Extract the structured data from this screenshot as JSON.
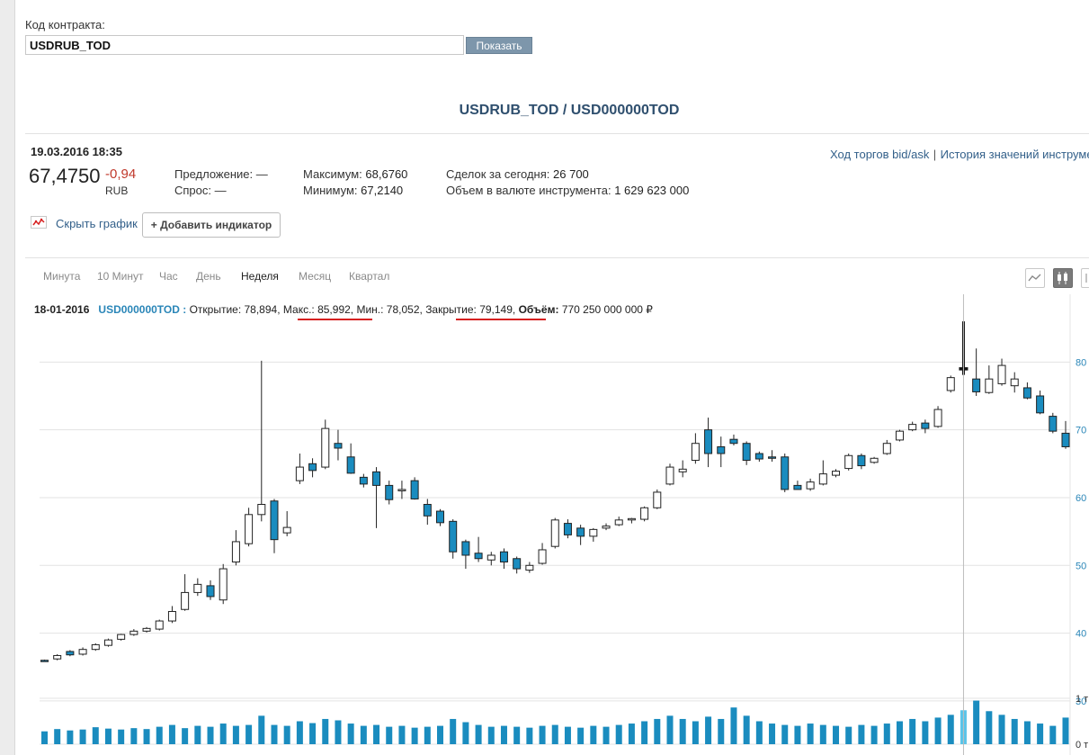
{
  "form": {
    "contract_label": "Код контракта:",
    "contract_value": "USDRUB_TOD",
    "show_button": "Показать"
  },
  "header": {
    "title": "USDRUB_TOD / USD000000TOD",
    "datetime": "19.03.2016 18:35",
    "price": "67,4750",
    "change": "-0,94",
    "currency": "RUB",
    "offer": "Предложение: —",
    "demand": "Спрос: —",
    "max_label": "Максимум:",
    "max_value": "68,6760",
    "min_label": "Минимум:",
    "min_value": "67,2140",
    "deals_label": "Сделок за сегодня:",
    "deals_value": "26 700",
    "volume_label": "Объем в валюте инструмента:",
    "volume_value": "1 629 623 000",
    "link_bidask": "Ход торгов bid/ask",
    "link_separator": "|",
    "link_history": "История значений инструме"
  },
  "controls": {
    "hide_chart": "Скрыть график",
    "add_indicator": "+ Добавить индикатор",
    "periods": [
      "Минута",
      "10 Минут",
      "Час",
      "День",
      "Неделя",
      "Месяц",
      "Квартал"
    ],
    "active_period": "Неделя"
  },
  "tooltip": {
    "date": "18-01-2016",
    "instrument": "USD000000TOD :",
    "open": "Открытие: 78,894,",
    "max": "Макс.: 85,992,",
    "min": "Мин.: 78,052,",
    "close": "Закрытие: 79,149,",
    "volume_label": "Объём:",
    "volume_value": "770 250 000 000 ₽"
  },
  "colors": {
    "up_fill": "#ffffff",
    "down_fill": "#1a8cbf",
    "volume": "#1a8cbf",
    "volume_highlight": "#5bc4e8",
    "axis_text": "#2a86b8",
    "underline": "#d62020"
  },
  "chart_data": {
    "type": "candlestick",
    "ylim": [
      28,
      90
    ],
    "yticks": [
      30,
      40,
      50,
      60,
      70,
      80
    ],
    "ytick_labels": [
      "30",
      "40",
      "50",
      "60",
      "70",
      "80"
    ],
    "volume_tick_labels": [
      "1 т",
      "0 т"
    ],
    "grid": true,
    "highlight_index": 72,
    "candles": [
      {
        "o": 36.0,
        "h": 36.1,
        "l": 35.8,
        "c": 35.9
      },
      {
        "o": 36.2,
        "h": 36.9,
        "l": 36.0,
        "c": 36.7
      },
      {
        "o": 37.3,
        "h": 37.5,
        "l": 36.6,
        "c": 36.8
      },
      {
        "o": 36.9,
        "h": 37.9,
        "l": 36.7,
        "c": 37.6
      },
      {
        "o": 37.6,
        "h": 38.5,
        "l": 37.4,
        "c": 38.3
      },
      {
        "o": 38.2,
        "h": 39.2,
        "l": 38.0,
        "c": 39.0
      },
      {
        "o": 39.1,
        "h": 39.9,
        "l": 38.9,
        "c": 39.8
      },
      {
        "o": 39.8,
        "h": 40.6,
        "l": 39.6,
        "c": 40.3
      },
      {
        "o": 40.3,
        "h": 40.9,
        "l": 40.1,
        "c": 40.7
      },
      {
        "o": 40.6,
        "h": 42.0,
        "l": 40.4,
        "c": 41.8
      },
      {
        "o": 41.8,
        "h": 44.0,
        "l": 41.5,
        "c": 43.2
      },
      {
        "o": 43.5,
        "h": 48.7,
        "l": 43.3,
        "c": 46.0
      },
      {
        "o": 46.0,
        "h": 48.1,
        "l": 45.5,
        "c": 47.2
      },
      {
        "o": 47.0,
        "h": 47.8,
        "l": 44.9,
        "c": 45.4
      },
      {
        "o": 44.9,
        "h": 50.2,
        "l": 44.3,
        "c": 49.5
      },
      {
        "o": 50.5,
        "h": 55.2,
        "l": 50.0,
        "c": 53.5
      },
      {
        "o": 53.2,
        "h": 58.5,
        "l": 52.8,
        "c": 57.5
      },
      {
        "o": 57.5,
        "h": 80.2,
        "l": 56.5,
        "c": 59.0
      },
      {
        "o": 59.5,
        "h": 59.8,
        "l": 51.8,
        "c": 53.8
      },
      {
        "o": 54.8,
        "h": 58.0,
        "l": 54.3,
        "c": 55.6
      },
      {
        "o": 62.5,
        "h": 66.5,
        "l": 62.0,
        "c": 64.5
      },
      {
        "o": 65.0,
        "h": 65.8,
        "l": 63.0,
        "c": 64.0
      },
      {
        "o": 64.5,
        "h": 71.5,
        "l": 64.2,
        "c": 70.2
      },
      {
        "o": 68.0,
        "h": 70.0,
        "l": 65.5,
        "c": 67.3
      },
      {
        "o": 66.0,
        "h": 68.0,
        "l": 63.5,
        "c": 63.6
      },
      {
        "o": 63.0,
        "h": 63.5,
        "l": 61.5,
        "c": 62.0
      },
      {
        "o": 63.8,
        "h": 64.5,
        "l": 55.5,
        "c": 61.8
      },
      {
        "o": 61.8,
        "h": 62.5,
        "l": 59.0,
        "c": 59.7
      },
      {
        "o": 61.0,
        "h": 62.5,
        "l": 59.8,
        "c": 61.2
      },
      {
        "o": 62.5,
        "h": 63.0,
        "l": 59.7,
        "c": 59.8
      },
      {
        "o": 59.0,
        "h": 59.8,
        "l": 56.0,
        "c": 57.3
      },
      {
        "o": 58.0,
        "h": 58.3,
        "l": 55.8,
        "c": 56.3
      },
      {
        "o": 56.5,
        "h": 56.8,
        "l": 51.0,
        "c": 52.0
      },
      {
        "o": 53.5,
        "h": 53.8,
        "l": 49.5,
        "c": 51.5
      },
      {
        "o": 51.8,
        "h": 54.2,
        "l": 50.5,
        "c": 51.0
      },
      {
        "o": 50.8,
        "h": 52.0,
        "l": 50.0,
        "c": 51.5
      },
      {
        "o": 52.0,
        "h": 52.5,
        "l": 49.5,
        "c": 50.5
      },
      {
        "o": 51.0,
        "h": 51.3,
        "l": 48.8,
        "c": 49.5
      },
      {
        "o": 49.3,
        "h": 50.5,
        "l": 48.9,
        "c": 50.0
      },
      {
        "o": 50.3,
        "h": 53.3,
        "l": 50.1,
        "c": 52.3
      },
      {
        "o": 52.8,
        "h": 57.0,
        "l": 52.5,
        "c": 56.7
      },
      {
        "o": 56.2,
        "h": 56.8,
        "l": 54.0,
        "c": 54.5
      },
      {
        "o": 55.5,
        "h": 56.0,
        "l": 53.0,
        "c": 54.3
      },
      {
        "o": 54.3,
        "h": 55.5,
        "l": 53.5,
        "c": 55.3
      },
      {
        "o": 55.5,
        "h": 56.2,
        "l": 55.2,
        "c": 55.8
      },
      {
        "o": 56.0,
        "h": 57.2,
        "l": 55.8,
        "c": 56.7
      },
      {
        "o": 56.7,
        "h": 57.0,
        "l": 56.2,
        "c": 56.9
      },
      {
        "o": 56.8,
        "h": 58.7,
        "l": 56.5,
        "c": 58.5
      },
      {
        "o": 58.5,
        "h": 61.2,
        "l": 58.3,
        "c": 60.8
      },
      {
        "o": 62.0,
        "h": 65.0,
        "l": 61.8,
        "c": 64.5
      },
      {
        "o": 63.8,
        "h": 65.5,
        "l": 63.0,
        "c": 64.2
      },
      {
        "o": 65.5,
        "h": 69.5,
        "l": 65.0,
        "c": 68.0
      },
      {
        "o": 70.0,
        "h": 71.8,
        "l": 64.5,
        "c": 66.5
      },
      {
        "o": 67.5,
        "h": 69.0,
        "l": 64.5,
        "c": 66.5
      },
      {
        "o": 68.6,
        "h": 69.3,
        "l": 67.7,
        "c": 68.0
      },
      {
        "o": 68.0,
        "h": 68.3,
        "l": 64.8,
        "c": 65.5
      },
      {
        "o": 66.5,
        "h": 66.8,
        "l": 65.3,
        "c": 65.7
      },
      {
        "o": 66.0,
        "h": 67.0,
        "l": 65.3,
        "c": 65.8
      },
      {
        "o": 66.0,
        "h": 66.5,
        "l": 60.8,
        "c": 61.2
      },
      {
        "o": 61.8,
        "h": 62.5,
        "l": 61.2,
        "c": 61.2
      },
      {
        "o": 61.3,
        "h": 62.8,
        "l": 61.0,
        "c": 62.3
      },
      {
        "o": 62.0,
        "h": 65.5,
        "l": 61.8,
        "c": 63.5
      },
      {
        "o": 63.3,
        "h": 64.2,
        "l": 63.0,
        "c": 63.9
      },
      {
        "o": 64.3,
        "h": 66.5,
        "l": 64.0,
        "c": 66.2
      },
      {
        "o": 66.2,
        "h": 66.5,
        "l": 64.2,
        "c": 64.7
      },
      {
        "o": 65.2,
        "h": 66.0,
        "l": 65.0,
        "c": 65.8
      },
      {
        "o": 66.5,
        "h": 68.5,
        "l": 66.3,
        "c": 68.0
      },
      {
        "o": 68.5,
        "h": 70.0,
        "l": 68.3,
        "c": 69.8
      },
      {
        "o": 70.0,
        "h": 71.2,
        "l": 69.8,
        "c": 70.8
      },
      {
        "o": 71.0,
        "h": 71.5,
        "l": 69.5,
        "c": 70.2
      },
      {
        "o": 70.5,
        "h": 73.5,
        "l": 70.3,
        "c": 73.0
      },
      {
        "o": 75.8,
        "h": 78.0,
        "l": 75.5,
        "c": 77.7
      },
      {
        "o": 78.9,
        "h": 86.0,
        "l": 78.1,
        "c": 79.1
      },
      {
        "o": 77.5,
        "h": 82.0,
        "l": 75.0,
        "c": 75.6
      },
      {
        "o": 75.5,
        "h": 79.5,
        "l": 75.3,
        "c": 77.5
      },
      {
        "o": 76.8,
        "h": 80.5,
        "l": 76.5,
        "c": 79.5
      },
      {
        "o": 76.5,
        "h": 78.5,
        "l": 75.5,
        "c": 77.5
      },
      {
        "o": 76.2,
        "h": 77.0,
        "l": 74.5,
        "c": 74.7
      },
      {
        "o": 75.0,
        "h": 75.8,
        "l": 72.3,
        "c": 72.5
      },
      {
        "o": 72.0,
        "h": 72.5,
        "l": 69.5,
        "c": 69.8
      },
      {
        "o": 69.5,
        "h": 71.3,
        "l": 67.2,
        "c": 67.5
      }
    ],
    "volumes": [
      0.28,
      0.33,
      0.3,
      0.32,
      0.37,
      0.34,
      0.32,
      0.35,
      0.33,
      0.38,
      0.42,
      0.35,
      0.4,
      0.38,
      0.45,
      0.4,
      0.42,
      0.62,
      0.42,
      0.4,
      0.5,
      0.46,
      0.55,
      0.52,
      0.45,
      0.4,
      0.42,
      0.38,
      0.4,
      0.36,
      0.38,
      0.4,
      0.55,
      0.48,
      0.42,
      0.38,
      0.4,
      0.38,
      0.36,
      0.4,
      0.42,
      0.38,
      0.36,
      0.4,
      0.38,
      0.42,
      0.45,
      0.5,
      0.55,
      0.62,
      0.55,
      0.5,
      0.6,
      0.55,
      0.8,
      0.62,
      0.5,
      0.45,
      0.42,
      0.4,
      0.45,
      0.42,
      0.4,
      0.38,
      0.42,
      0.4,
      0.45,
      0.5,
      0.55,
      0.5,
      0.58,
      0.64,
      0.74,
      0.95,
      0.72,
      0.64,
      0.55,
      0.5,
      0.45,
      0.4,
      0.58
    ]
  }
}
